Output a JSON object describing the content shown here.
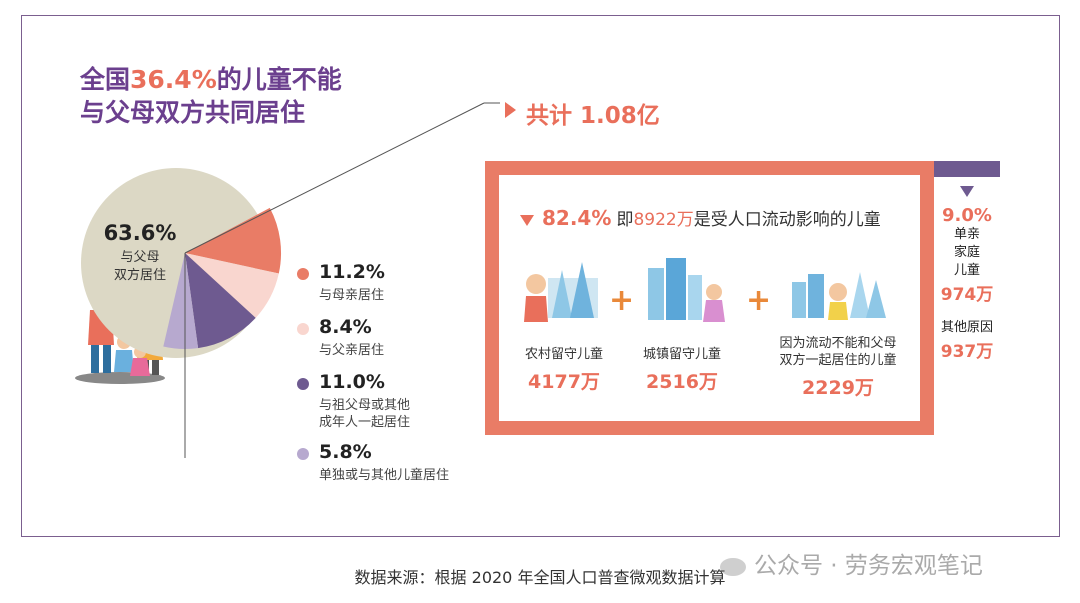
{
  "title": {
    "line1_pre": "全国",
    "line1_hl": "36.4%",
    "line1_post": "的儿童不能",
    "line2": "与父母双方共同居住"
  },
  "total_label": "共计 1.08亿",
  "colors": {
    "frame": "#7b5f8f",
    "coral": "#e97c66",
    "pink": "#f9d6cf",
    "purple": "#6e5a90",
    "lavender": "#b7a9cf",
    "beige": "#dcd8c5"
  },
  "chart_data": {
    "type": "pie",
    "slices": [
      {
        "label": "与父母双方居住",
        "value": 63.6,
        "color": "#dcd8c5"
      },
      {
        "label": "与母亲居住",
        "value": 11.2,
        "color": "#e97c66"
      },
      {
        "label": "与父亲居住",
        "value": 8.4,
        "color": "#f9d6cf"
      },
      {
        "label": "与祖父母或其他成年人一起居住",
        "value": 11.0,
        "color": "#6e5a90"
      },
      {
        "label": "单独或与其他儿童居住",
        "value": 5.8,
        "color": "#b7a9cf"
      }
    ]
  },
  "pie_main": {
    "value": "63.6%",
    "label1": "与父母",
    "label2": "双方居住"
  },
  "legend": [
    {
      "value": "11.2%",
      "label1": "与母亲居住",
      "label2": ""
    },
    {
      "value": "8.4%",
      "label1": "与父亲居住",
      "label2": ""
    },
    {
      "value": "11.0%",
      "label1": "与祖父母或其他",
      "label2": "成年人一起居住"
    },
    {
      "value": "5.8%",
      "label1": "单独或与其他儿童居住",
      "label2": ""
    }
  ],
  "box": {
    "head_pct": "82.4%",
    "head_pre": "即",
    "head_num": "8922万",
    "head_post": "是受人口流动影响的儿童",
    "categories": [
      {
        "label1": "农村留守儿童",
        "label2": "",
        "value": "4177万"
      },
      {
        "label1": "城镇留守儿童",
        "label2": "",
        "value": "2516万"
      },
      {
        "label1": "因为流动不能和父母",
        "label2": "双方一起居住的儿童",
        "value": "2229万"
      }
    ],
    "plus": "+"
  },
  "side": {
    "pct": "9.0%",
    "label1": "单亲",
    "label2": "家庭",
    "label3": "儿童",
    "value1": "974万",
    "label4": "其他原因",
    "value2": "937万"
  },
  "source": "数据来源：根据 2020 年全国人口普查微观数据计算",
  "watermark": "公众号 · 劳务宏观笔记"
}
